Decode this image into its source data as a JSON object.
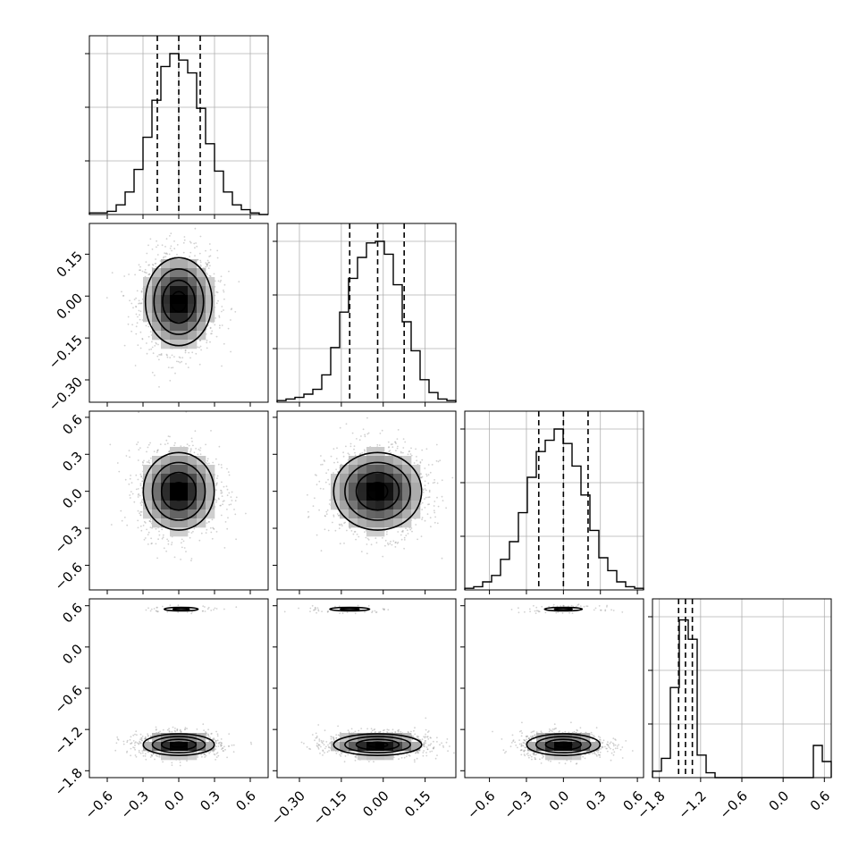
{
  "chart_data": {
    "type": "corner",
    "parameters": 4,
    "grid": true,
    "axes": [
      {
        "index": 0,
        "range": [
          -0.75,
          0.75
        ],
        "ticks": [
          -0.6,
          -0.3,
          0.0,
          0.3,
          0.6
        ],
        "tick_labels": [
          "−0.6",
          "−0.3",
          "0.0",
          "0.3",
          "0.6"
        ]
      },
      {
        "index": 1,
        "range": [
          -0.38,
          0.26
        ],
        "ticks": [
          -0.3,
          -0.15,
          0.0,
          0.15
        ],
        "tick_labels": [
          "−0.30",
          "−0.15",
          "0.00",
          "0.15"
        ]
      },
      {
        "index": 2,
        "range": [
          -0.8,
          0.65
        ],
        "ticks": [
          -0.6,
          -0.3,
          0.0,
          0.3,
          0.6
        ],
        "tick_labels": [
          "−0.6",
          "−0.3",
          "0.0",
          "0.3",
          "0.6"
        ]
      },
      {
        "index": 3,
        "range": [
          -1.9,
          0.7
        ],
        "ticks": [
          -1.8,
          -1.2,
          -0.6,
          0.0,
          0.6
        ],
        "tick_labels": [
          "−1.8",
          "−1.2",
          "−0.6",
          "0.0",
          "0.6"
        ]
      }
    ],
    "histograms": [
      {
        "param": 0,
        "quantiles": [
          -0.18,
          0.0,
          0.18
        ],
        "bin_edges": [
          -0.75,
          -0.675,
          -0.6,
          -0.525,
          -0.45,
          -0.375,
          -0.3,
          -0.225,
          -0.15,
          -0.075,
          0.0,
          0.075,
          0.15,
          0.225,
          0.3,
          0.375,
          0.45,
          0.525,
          0.6,
          0.675,
          0.75
        ],
        "counts": [
          0.01,
          0.01,
          0.02,
          0.06,
          0.14,
          0.28,
          0.48,
          0.71,
          0.92,
          1.0,
          0.96,
          0.88,
          0.66,
          0.44,
          0.27,
          0.14,
          0.06,
          0.03,
          0.01,
          0.0
        ],
        "ytick_fractions": [
          0.3,
          0.6,
          0.9
        ]
      },
      {
        "param": 1,
        "quantiles": [
          -0.12,
          -0.02,
          0.075
        ],
        "bin_edges": [
          -0.38,
          -0.348,
          -0.316,
          -0.284,
          -0.252,
          -0.22,
          -0.188,
          -0.156,
          -0.124,
          -0.092,
          -0.06,
          -0.028,
          0.004,
          0.036,
          0.068,
          0.1,
          0.132,
          0.164,
          0.196,
          0.228,
          0.26
        ],
        "counts": [
          0.01,
          0.02,
          0.03,
          0.05,
          0.08,
          0.17,
          0.34,
          0.56,
          0.77,
          0.9,
          0.99,
          1.0,
          0.92,
          0.73,
          0.5,
          0.32,
          0.14,
          0.06,
          0.02,
          0.01
        ],
        "ytick_fractions": [
          0.3,
          0.6,
          0.9
        ]
      },
      {
        "param": 2,
        "quantiles": [
          -0.2,
          0.0,
          0.2
        ],
        "bin_edges": [
          -0.8,
          -0.7275,
          -0.655,
          -0.5825,
          -0.51,
          -0.4375,
          -0.365,
          -0.2925,
          -0.22,
          -0.1475,
          -0.075,
          -0.0025,
          0.07,
          0.1425,
          0.215,
          0.2875,
          0.36,
          0.4325,
          0.505,
          0.5775,
          0.65
        ],
        "counts": [
          0.01,
          0.02,
          0.05,
          0.09,
          0.19,
          0.3,
          0.48,
          0.7,
          0.86,
          0.93,
          1.0,
          0.91,
          0.77,
          0.59,
          0.37,
          0.2,
          0.12,
          0.05,
          0.02,
          0.01
        ],
        "ytick_fractions": [
          0.3,
          0.6,
          0.9
        ]
      },
      {
        "param": 3,
        "quantiles": [
          -1.52,
          -1.42,
          -1.32
        ],
        "bin_edges": [
          -1.9,
          -1.77,
          -1.64,
          -1.51,
          -1.38,
          -1.25,
          -1.12,
          -0.99,
          -0.86,
          -0.73,
          -0.6,
          -0.47,
          -0.34,
          -0.21,
          -0.08,
          0.05,
          0.18,
          0.31,
          0.44,
          0.57,
          0.7
        ],
        "counts": [
          0.04,
          0.12,
          0.56,
          0.98,
          0.86,
          0.14,
          0.03,
          0.0,
          0.0,
          0.0,
          0.0,
          0.0,
          0.0,
          0.0,
          0.0,
          0.0,
          0.0,
          0.0,
          0.2,
          0.1
        ],
        "ytick_fractions": [
          0.3,
          0.6,
          0.9
        ]
      }
    ],
    "pairs": [
      {
        "x": 0,
        "y": 1,
        "modes": [
          {
            "cx": 0.0,
            "cy": -0.02,
            "sx": 0.16,
            "sy": 0.09,
            "weight": 1.0
          }
        ]
      },
      {
        "x": 0,
        "y": 2,
        "modes": [
          {
            "cx": 0.0,
            "cy": 0.0,
            "sx": 0.17,
            "sy": 0.18,
            "weight": 1.0
          }
        ]
      },
      {
        "x": 1,
        "y": 2,
        "modes": [
          {
            "cx": -0.02,
            "cy": 0.0,
            "sx": 0.09,
            "sy": 0.18,
            "weight": 1.0
          }
        ]
      },
      {
        "x": 0,
        "y": 3,
        "modes": [
          {
            "cx": 0.0,
            "cy": -1.42,
            "sx": 0.17,
            "sy": 0.09,
            "weight": 0.9
          },
          {
            "cx": 0.02,
            "cy": 0.55,
            "sx": 0.14,
            "sy": 0.025,
            "weight": 0.1
          }
        ]
      },
      {
        "x": 1,
        "y": 3,
        "modes": [
          {
            "cx": -0.02,
            "cy": -1.42,
            "sx": 0.09,
            "sy": 0.09,
            "weight": 0.9
          },
          {
            "cx": -0.12,
            "cy": 0.55,
            "sx": 0.07,
            "sy": 0.025,
            "weight": 0.1
          }
        ]
      },
      {
        "x": 2,
        "y": 3,
        "modes": [
          {
            "cx": 0.0,
            "cy": -1.42,
            "sx": 0.17,
            "sy": 0.09,
            "weight": 0.9
          },
          {
            "cx": 0.0,
            "cy": 0.55,
            "sx": 0.15,
            "sy": 0.025,
            "weight": 0.1
          }
        ]
      }
    ],
    "contour_levels": [
      0.4,
      0.85,
      1.3,
      1.75
    ]
  }
}
